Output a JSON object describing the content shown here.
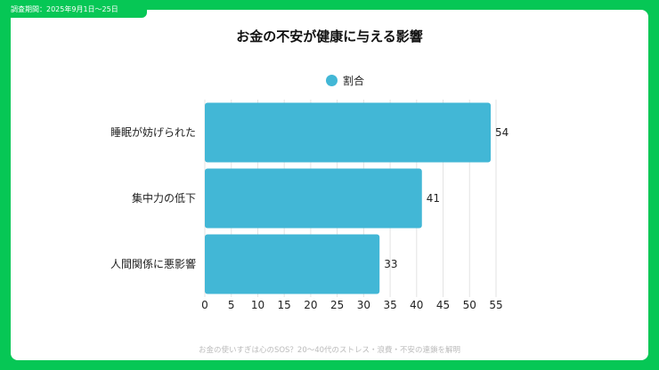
{
  "period_tag": "調査期間：2025年9月1日〜25日",
  "footer": "お金の使いすぎは心のSOS？20〜40代のストレス・浪費・不安の連鎖を解明",
  "chart_data": {
    "type": "bar",
    "orientation": "horizontal",
    "title": "お金の不安が健康に与える影響",
    "categories": [
      "睡眠が妨げられた",
      "集中力の低下",
      "人間関係に悪影響"
    ],
    "series": [
      {
        "name": "割合",
        "values": [
          54,
          41,
          33
        ],
        "color": "#42b7d6"
      }
    ],
    "xlim": [
      0,
      55
    ],
    "xticks": [
      0,
      5,
      10,
      15,
      20,
      25,
      30,
      35,
      40,
      45,
      50,
      55
    ],
    "grid": "vertical",
    "legend": "top-center",
    "data_labels": true
  }
}
